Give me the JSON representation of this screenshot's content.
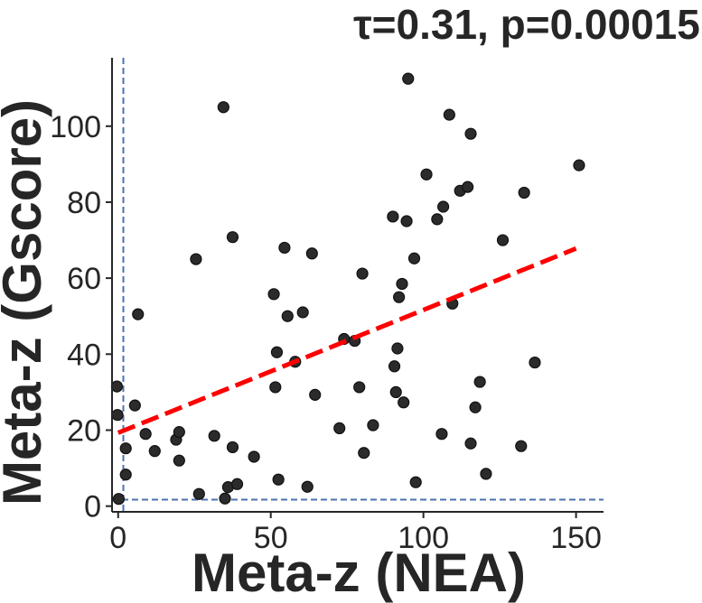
{
  "chart_data": {
    "type": "scatter",
    "title": "τ=0.31, p=0.00015",
    "xlabel": "Meta-z (NEA)",
    "ylabel": "Meta-z (Gscore)",
    "xlim": [
      -2,
      159
    ],
    "ylim": [
      -1.5,
      118
    ],
    "xticks": [
      0,
      50,
      100,
      150
    ],
    "yticks": [
      0,
      20,
      40,
      60,
      80,
      100
    ],
    "grid": false,
    "point_color": "#2b2b2b",
    "trend_color": "#ff0000",
    "threshold_color": "#4c72b0",
    "threshold_x": 1.7,
    "threshold_y": 1.7,
    "trend_line": {
      "x": [
        0,
        150
      ],
      "y": [
        19.3,
        67.8
      ]
    },
    "points": [
      [
        -0.4,
        31.5
      ],
      [
        -0.2,
        24.0
      ],
      [
        0.2,
        1.9
      ],
      [
        2.5,
        15.2
      ],
      [
        2.5,
        8.3
      ],
      [
        5.5,
        26.5
      ],
      [
        6.5,
        50.5
      ],
      [
        9.0,
        19.0
      ],
      [
        12.0,
        14.5
      ],
      [
        19.0,
        17.5
      ],
      [
        20.0,
        19.5
      ],
      [
        20.0,
        12.0
      ],
      [
        25.5,
        65.0
      ],
      [
        26.5,
        3.2
      ],
      [
        31.5,
        18.5
      ],
      [
        34.5,
        105.0
      ],
      [
        35.0,
        2.0
      ],
      [
        36.0,
        5.0
      ],
      [
        37.5,
        70.8
      ],
      [
        37.5,
        15.5
      ],
      [
        39.0,
        5.8
      ],
      [
        44.5,
        13.0
      ],
      [
        51.0,
        55.8
      ],
      [
        51.5,
        31.3
      ],
      [
        52.0,
        40.5
      ],
      [
        52.5,
        7.0
      ],
      [
        54.5,
        68.0
      ],
      [
        55.5,
        50.0
      ],
      [
        58.0,
        38.0
      ],
      [
        60.5,
        51.0
      ],
      [
        62.0,
        5.1
      ],
      [
        63.5,
        66.5
      ],
      [
        64.5,
        29.3
      ],
      [
        72.5,
        20.5
      ],
      [
        74.0,
        44.0
      ],
      [
        77.5,
        43.5
      ],
      [
        79.0,
        31.3
      ],
      [
        80.0,
        61.2
      ],
      [
        80.5,
        14.0
      ],
      [
        83.5,
        21.3
      ],
      [
        90.0,
        76.2
      ],
      [
        90.5,
        36.8
      ],
      [
        91.0,
        30.0
      ],
      [
        91.5,
        41.5
      ],
      [
        92.0,
        55.0
      ],
      [
        93.0,
        58.5
      ],
      [
        93.5,
        27.3
      ],
      [
        94.5,
        75.0
      ],
      [
        95.0,
        112.5
      ],
      [
        97.0,
        65.2
      ],
      [
        97.5,
        6.3
      ],
      [
        101.0,
        87.3
      ],
      [
        104.5,
        75.5
      ],
      [
        106.0,
        19.0
      ],
      [
        106.5,
        78.8
      ],
      [
        108.5,
        103.0
      ],
      [
        109.5,
        53.3
      ],
      [
        112.0,
        83.0
      ],
      [
        114.5,
        84.0
      ],
      [
        115.5,
        98.0
      ],
      [
        115.5,
        16.5
      ],
      [
        117.0,
        26.0
      ],
      [
        118.5,
        32.7
      ],
      [
        120.5,
        8.5
      ],
      [
        126.0,
        70.0
      ],
      [
        132.0,
        15.8
      ],
      [
        133.0,
        82.5
      ],
      [
        136.5,
        37.8
      ],
      [
        151.0,
        89.7
      ]
    ]
  }
}
